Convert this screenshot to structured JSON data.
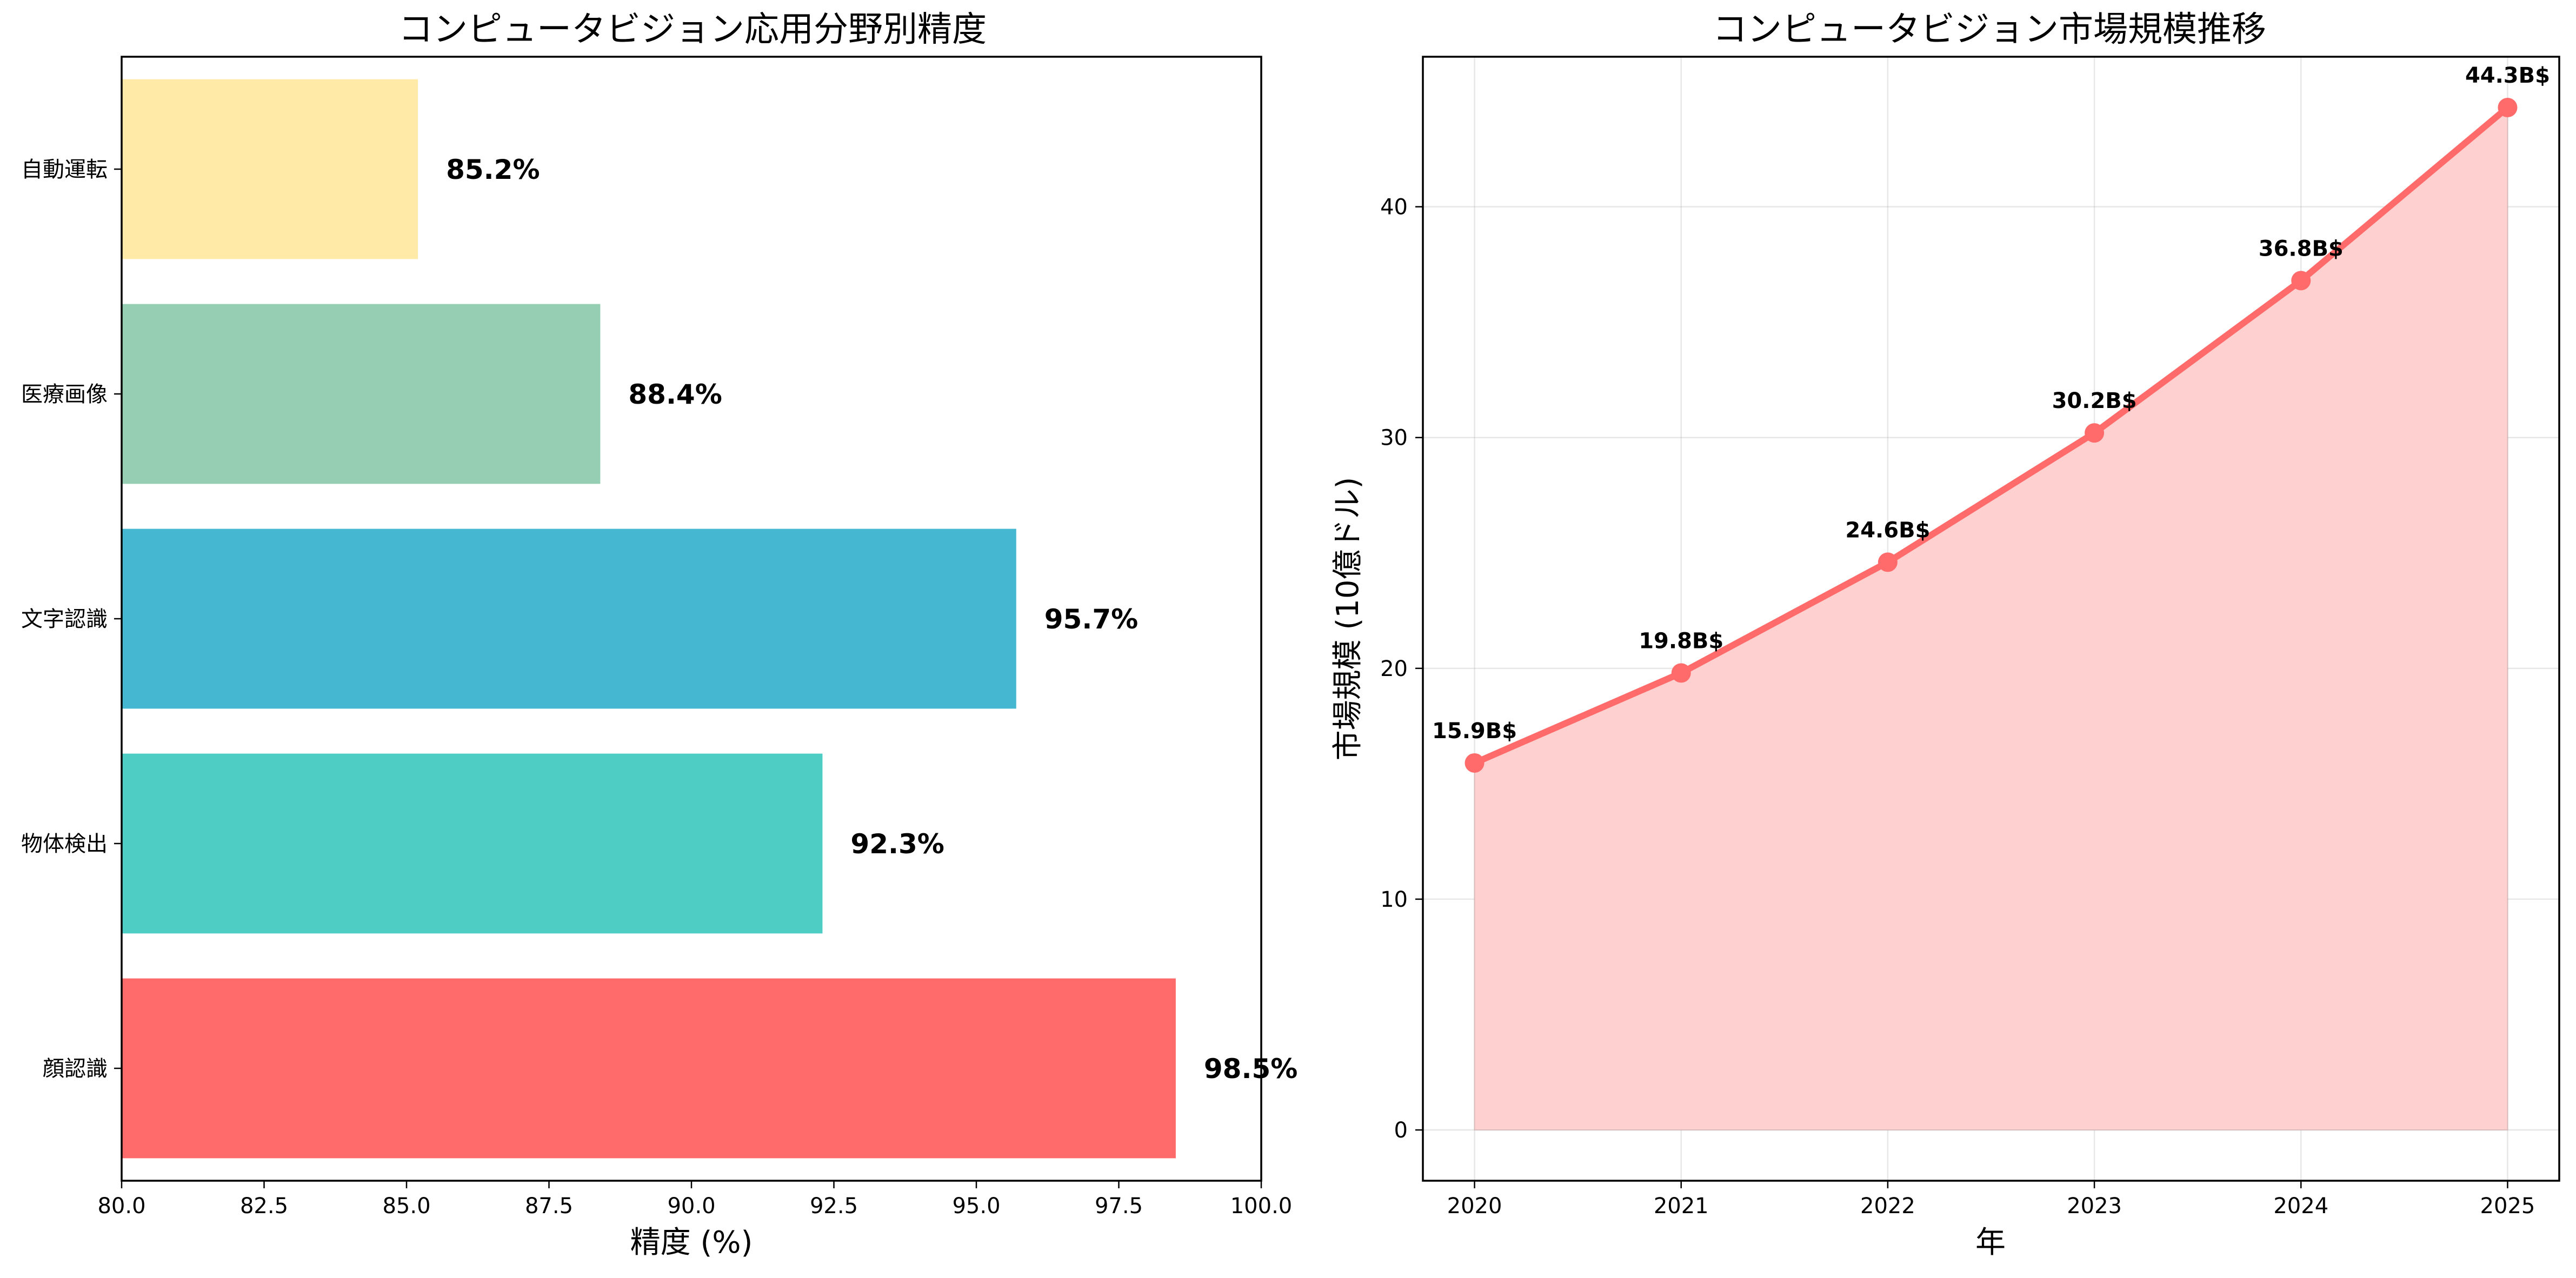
{
  "chart_data": [
    {
      "type": "bar",
      "orientation": "horizontal",
      "title": "コンピュータビジョン応用分野別精度",
      "xlabel": "精度 (%)",
      "ylabel": "",
      "xlim": [
        80,
        100
      ],
      "xticks": [
        "80.0",
        "82.5",
        "85.0",
        "87.5",
        "90.0",
        "92.5",
        "95.0",
        "97.5",
        "100.0"
      ],
      "grid": false,
      "categories": [
        "顔認識",
        "物体検出",
        "文字認識",
        "医療画像",
        "自動運転"
      ],
      "values": [
        98.5,
        92.3,
        95.7,
        88.4,
        85.2
      ],
      "value_labels": [
        "98.5%",
        "92.3%",
        "95.7%",
        "88.4%",
        "85.2%"
      ],
      "colors": [
        "#FF6B6B",
        "#4ECDC4",
        "#45B7D1",
        "#96CEB4",
        "#FFEAA7"
      ]
    },
    {
      "type": "area",
      "title": "コンピュータビジョン市場規模推移",
      "xlabel": "年",
      "ylabel": "市場規模 (10億ドル)",
      "ylim": [
        -2.2,
        46.5
      ],
      "yticks": [
        "0",
        "10",
        "20",
        "30",
        "40"
      ],
      "grid": true,
      "x": [
        "2020",
        "2021",
        "2022",
        "2023",
        "2024",
        "2025"
      ],
      "values": [
        15.9,
        19.8,
        24.6,
        30.2,
        36.8,
        44.3
      ],
      "value_labels": [
        "15.9B$",
        "19.8B$",
        "24.6B$",
        "30.2B$",
        "36.8B$",
        "44.3B$"
      ],
      "line_color": "#FF6B6B",
      "fill_color": "#FFD0D0"
    }
  ]
}
